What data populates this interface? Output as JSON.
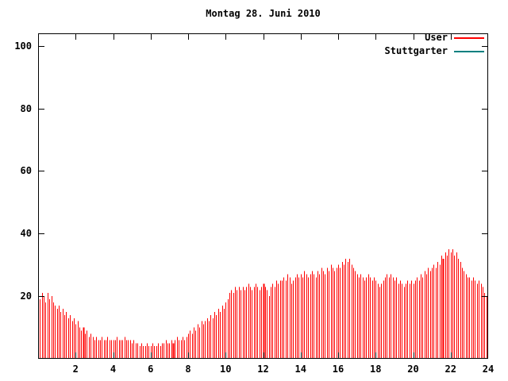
{
  "title": "Montag 28. Juni 2010",
  "legend": [
    {
      "label": "User",
      "color": "#ff0000"
    },
    {
      "label": "Stuttgarter",
      "color": "#008080"
    }
  ],
  "colors": {
    "axis": "#000000",
    "background": "#ffffff",
    "bar": "#ff0000"
  },
  "chart_data": {
    "type": "bar",
    "title": "Montag 28. Juni 2010",
    "xlabel": "",
    "ylabel": "",
    "xlim": [
      0,
      24
    ],
    "ylim": [
      0,
      104
    ],
    "x_ticks": [
      2,
      4,
      6,
      8,
      10,
      12,
      14,
      16,
      18,
      20,
      22,
      24
    ],
    "y_ticks": [
      20,
      40,
      60,
      80,
      100
    ],
    "grid": false,
    "legend_position": "top-right",
    "x_start": 0.0,
    "x_step": 0.1,
    "accent_x": [
      2.4,
      7.2,
      12.0,
      21.6
    ],
    "series": [
      {
        "name": "User",
        "color": "#ff0000",
        "values": [
          21,
          19,
          21,
          20,
          18,
          21,
          19,
          20,
          18,
          17,
          16,
          17,
          15,
          16,
          14,
          15,
          13,
          14,
          12,
          13,
          11,
          12,
          10,
          9,
          10,
          8,
          9,
          7,
          8,
          7,
          6,
          7,
          6,
          6,
          7,
          6,
          6,
          7,
          6,
          6,
          6,
          6,
          7,
          6,
          6,
          6,
          7,
          6,
          6,
          6,
          5,
          6,
          5,
          5,
          4,
          5,
          4,
          4,
          5,
          4,
          4,
          5,
          4,
          4,
          5,
          4,
          5,
          5,
          6,
          5,
          5,
          6,
          5,
          6,
          7,
          6,
          6,
          7,
          6,
          7,
          8,
          9,
          8,
          10,
          9,
          11,
          10,
          12,
          11,
          12,
          13,
          12,
          14,
          13,
          15,
          14,
          16,
          15,
          17,
          16,
          18,
          19,
          21,
          22,
          21,
          23,
          22,
          23,
          22,
          23,
          22,
          23,
          24,
          23,
          22,
          23,
          24,
          23,
          22,
          23,
          24,
          23,
          22,
          20,
          23,
          24,
          23,
          25,
          24,
          25,
          25,
          26,
          25,
          27,
          26,
          24,
          25,
          26,
          27,
          26,
          27,
          26,
          28,
          27,
          26,
          27,
          28,
          27,
          26,
          28,
          27,
          29,
          28,
          27,
          29,
          28,
          30,
          29,
          28,
          29,
          30,
          29,
          31,
          30,
          32,
          31,
          32,
          30,
          29,
          28,
          27,
          26,
          27,
          26,
          25,
          26,
          27,
          26,
          25,
          26,
          25,
          24,
          23,
          24,
          25,
          26,
          27,
          26,
          27,
          26,
          25,
          26,
          24,
          25,
          24,
          23,
          24,
          25,
          24,
          25,
          24,
          25,
          26,
          25,
          27,
          26,
          28,
          27,
          29,
          28,
          29,
          30,
          29,
          31,
          30,
          33,
          32,
          34,
          33,
          35,
          34,
          35,
          33,
          34,
          32,
          31,
          29,
          28,
          27,
          26,
          26,
          25,
          26,
          25,
          24,
          25,
          24,
          23,
          21,
          20
        ]
      },
      {
        "name": "Stuttgarter",
        "color": "#008080",
        "values": []
      }
    ]
  }
}
